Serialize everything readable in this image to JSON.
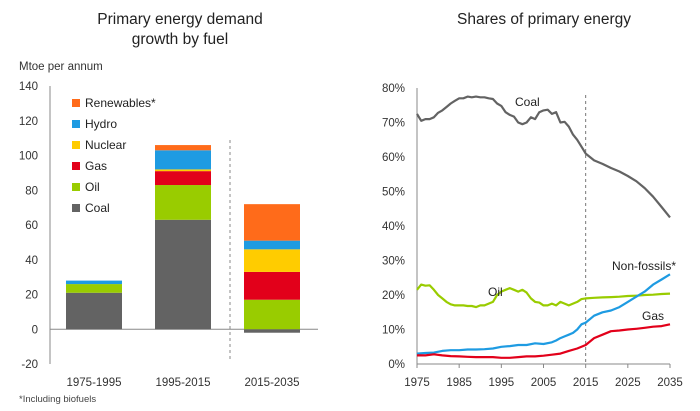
{
  "chart_data": [
    {
      "type": "bar",
      "stacked": true,
      "title": [
        "Primary energy demand",
        "growth by fuel"
      ],
      "ylabel": "Mtoe per annum",
      "ylim": [
        -20,
        140
      ],
      "yticks": [
        -20,
        0,
        20,
        40,
        60,
        80,
        100,
        120,
        140
      ],
      "categories": [
        "1975-1995",
        "1995-2015",
        "2015-2035"
      ],
      "legend_position": "top-right",
      "legend_order": [
        "Renewables*",
        "Hydro",
        "Nuclear",
        "Gas",
        "Oil",
        "Coal"
      ],
      "series": [
        {
          "name": "Coal",
          "color": "#636363",
          "values": [
            21,
            63,
            -2
          ]
        },
        {
          "name": "Oil",
          "color": "#99cc00",
          "values": [
            5,
            20,
            17
          ]
        },
        {
          "name": "Gas",
          "color": "#e2001a",
          "values": [
            0,
            8,
            16
          ]
        },
        {
          "name": "Nuclear",
          "color": "#ffcc00",
          "values": [
            0,
            1,
            13
          ]
        },
        {
          "name": "Hydro",
          "color": "#1e9be2",
          "values": [
            2,
            11,
            5
          ]
        },
        {
          "name": "Renewables*",
          "color": "#ff6b1a",
          "values": [
            0,
            3,
            21
          ]
        }
      ],
      "footnote": "*Including biofuels"
    },
    {
      "type": "line",
      "title": "Shares of primary energy",
      "xlim": [
        1975,
        2035
      ],
      "xticks": [
        1975,
        1985,
        1995,
        2005,
        2015,
        2025,
        2035
      ],
      "ylim": [
        0,
        80
      ],
      "yticks": [
        0,
        10,
        20,
        30,
        40,
        50,
        60,
        70,
        80
      ],
      "ytick_format": "percent",
      "projection_divider": 2015,
      "series": [
        {
          "name": "Coal",
          "color": "#636363",
          "x": [
            1975,
            1976,
            1977,
            1978,
            1979,
            1980,
            1981,
            1982,
            1983,
            1984,
            1985,
            1986,
            1987,
            1988,
            1989,
            1990,
            1991,
            1992,
            1993,
            1994,
            1995,
            1996,
            1997,
            1998,
            1999,
            2000,
            2001,
            2002,
            2003,
            2004,
            2005,
            2006,
            2007,
            2008,
            2009,
            2010,
            2011,
            2012,
            2013,
            2014,
            2015,
            2017,
            2019,
            2021,
            2023,
            2025,
            2027,
            2029,
            2031,
            2033,
            2035
          ],
          "y": [
            72.5,
            70.5,
            71,
            71,
            71.5,
            72.8,
            73.5,
            74.5,
            75.5,
            76.3,
            77,
            77,
            77.5,
            77.3,
            77.5,
            77.3,
            77.3,
            77,
            76.8,
            75.5,
            74.8,
            73,
            72.2,
            71.7,
            70,
            69.5,
            70,
            71.5,
            71,
            73,
            73.5,
            73.7,
            72.5,
            73,
            70,
            70.2,
            68.8,
            66.5,
            65,
            63,
            61,
            59,
            58,
            56.8,
            55.8,
            54.5,
            53,
            51,
            48.5,
            45.5,
            42.5
          ]
        },
        {
          "name": "Oil",
          "color": "#99cc00",
          "x": [
            1975,
            1976,
            1977,
            1978,
            1979,
            1980,
            1981,
            1982,
            1983,
            1984,
            1985,
            1986,
            1987,
            1988,
            1989,
            1990,
            1991,
            1992,
            1993,
            1994,
            1995,
            1996,
            1997,
            1998,
            1999,
            2000,
            2001,
            2002,
            2003,
            2004,
            2005,
            2006,
            2007,
            2008,
            2009,
            2010,
            2011,
            2012,
            2013,
            2014,
            2015,
            2017,
            2019,
            2021,
            2023,
            2025,
            2027,
            2029,
            2031,
            2033,
            2035
          ],
          "y": [
            21.5,
            23,
            22.7,
            22.8,
            21.5,
            20,
            19,
            18,
            17.3,
            17,
            17,
            17,
            16.8,
            16.8,
            16.5,
            17,
            17,
            17.5,
            18,
            20,
            21,
            21.5,
            22,
            21.5,
            21,
            21.5,
            20.7,
            19,
            18,
            17.8,
            17,
            17,
            17.5,
            17,
            18,
            17.5,
            17,
            17.5,
            18,
            18.8,
            19,
            19.2,
            19.3,
            19.4,
            19.5,
            19.7,
            19.8,
            20,
            20.1,
            20.3,
            20.4
          ]
        },
        {
          "name": "Non-fossils*",
          "color": "#1e9be2",
          "x": [
            1975,
            1977,
            1979,
            1981,
            1983,
            1985,
            1987,
            1989,
            1991,
            1993,
            1995,
            1997,
            1999,
            2001,
            2003,
            2005,
            2007,
            2008,
            2009,
            2010,
            2011,
            2012,
            2013,
            2014,
            2015,
            2017,
            2019,
            2021,
            2023,
            2025,
            2027,
            2029,
            2031,
            2033,
            2035
          ],
          "y": [
            3,
            3.2,
            3.3,
            3.8,
            4,
            4,
            4.2,
            4.2,
            4.3,
            4.5,
            5,
            5.2,
            5.5,
            5.5,
            6,
            5.8,
            6.3,
            6.8,
            7.5,
            8,
            8.5,
            9,
            10,
            11.5,
            12,
            14,
            15,
            15.5,
            16.5,
            18,
            19.5,
            21,
            23,
            24.5,
            26
          ]
        },
        {
          "name": "Gas",
          "color": "#e2001a",
          "x": [
            1975,
            1977,
            1979,
            1981,
            1983,
            1985,
            1987,
            1989,
            1991,
            1993,
            1995,
            1997,
            1999,
            2001,
            2003,
            2005,
            2007,
            2009,
            2011,
            2013,
            2015,
            2017,
            2019,
            2021,
            2023,
            2025,
            2027,
            2029,
            2031,
            2033,
            2035
          ],
          "y": [
            2.5,
            2.5,
            2.8,
            2.5,
            2.3,
            2.2,
            2.1,
            2,
            2,
            2,
            1.8,
            1.8,
            2,
            2.2,
            2.2,
            2.4,
            2.7,
            3,
            3.8,
            4.5,
            5.5,
            7.5,
            8.5,
            9.5,
            9.7,
            10,
            10.2,
            10.5,
            10.8,
            11,
            11.5
          ]
        }
      ],
      "annotations": [
        "Coal",
        "Oil",
        "Non-fossils*",
        "Gas"
      ]
    }
  ]
}
